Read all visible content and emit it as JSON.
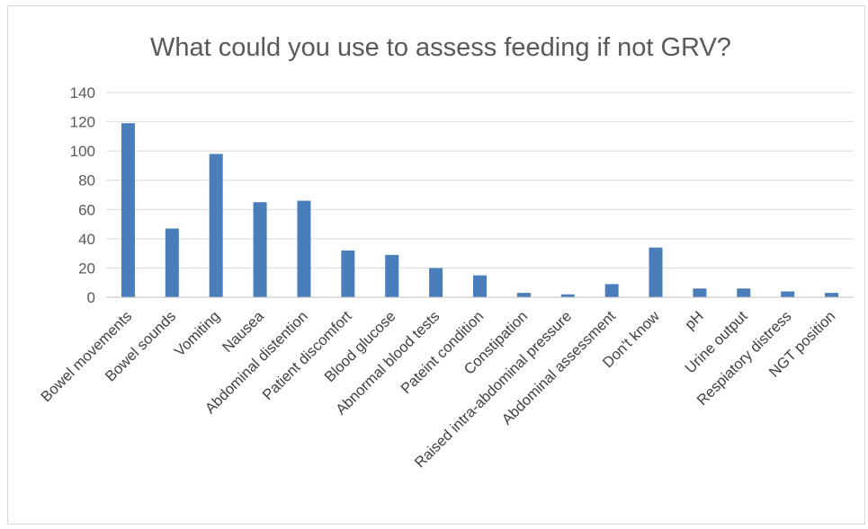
{
  "chart_data": {
    "type": "bar",
    "title": "What could you use to assess feeding if not GRV?",
    "xlabel": "",
    "ylabel": "",
    "ylim": [
      0,
      140
    ],
    "yticks": [
      0,
      20,
      40,
      60,
      80,
      100,
      120,
      140
    ],
    "grid": true,
    "legend": "none",
    "bar_color": "#4a7ebb",
    "categories": [
      "Bowel movements",
      "Bowel sounds",
      "Vomiting",
      "Nausea",
      "Abdominal distention",
      "Patient discomfort",
      "Blood glucose",
      "Abnormal blood tests",
      "Pateint condition",
      "Constipation",
      "Raised intra-abdominal pressure",
      "Abdominal assessment",
      "Don't know",
      "pH",
      "Urine output",
      "Respiatory distress",
      "NGT position"
    ],
    "values": [
      119,
      47,
      98,
      65,
      66,
      32,
      29,
      20,
      15,
      3,
      2,
      9,
      34,
      6,
      6,
      4,
      3
    ]
  }
}
